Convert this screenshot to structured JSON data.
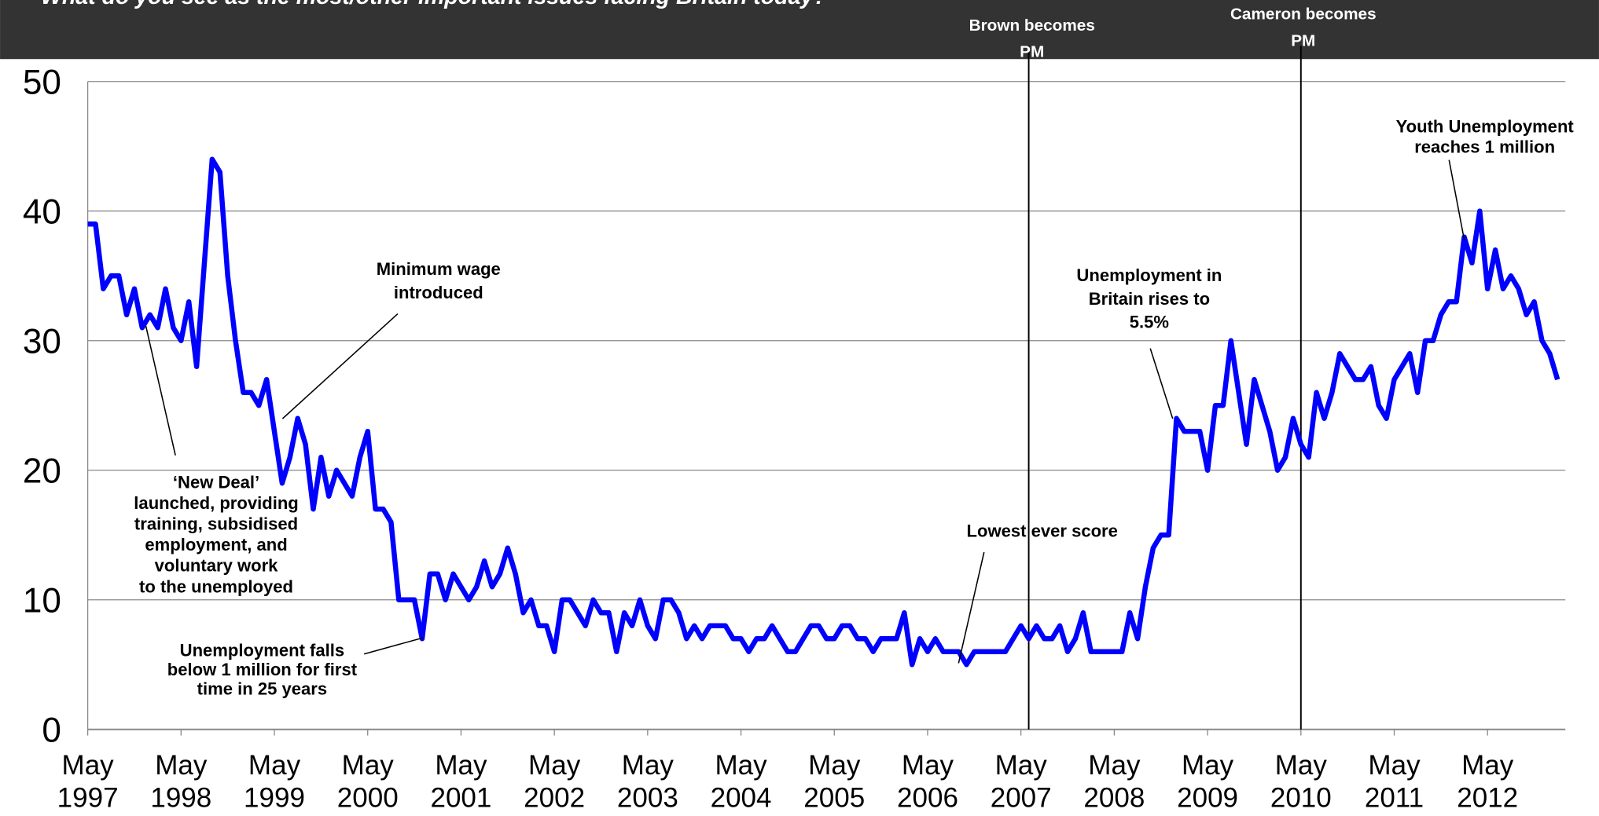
{
  "chart_data": {
    "type": "line",
    "title": "What do you see as the most/other important issues facing Britain today?",
    "x": [
      "1997-05",
      "1997-06",
      "1997-07",
      "1997-08",
      "1997-09",
      "1997-10",
      "1997-11",
      "1997-12",
      "1998-01",
      "1998-02",
      "1998-03",
      "1998-04",
      "1998-05",
      "1998-06",
      "1998-07",
      "1998-08",
      "1998-09",
      "1998-10",
      "1998-11",
      "1998-12",
      "1999-01",
      "1999-02",
      "1999-03",
      "1999-04",
      "1999-05",
      "1999-06",
      "1999-07",
      "1999-08",
      "1999-09",
      "1999-10",
      "1999-11",
      "1999-12",
      "2000-01",
      "2000-02",
      "2000-03",
      "2000-04",
      "2000-05",
      "2000-06",
      "2000-07",
      "2000-08",
      "2000-09",
      "2000-10",
      "2000-11",
      "2000-12",
      "2001-01",
      "2001-02",
      "2001-03",
      "2001-04",
      "2001-05",
      "2001-06",
      "2001-07",
      "2001-08",
      "2001-09",
      "2001-10",
      "2001-11",
      "2001-12",
      "2002-01",
      "2002-02",
      "2002-03",
      "2002-04",
      "2002-05",
      "2002-06",
      "2002-07",
      "2002-08",
      "2002-09",
      "2002-10",
      "2002-11",
      "2002-12",
      "2003-01",
      "2003-02",
      "2003-03",
      "2003-04",
      "2003-05",
      "2003-06",
      "2003-07",
      "2003-08",
      "2003-09",
      "2003-10",
      "2003-11",
      "2003-12",
      "2004-01",
      "2004-02",
      "2004-03",
      "2004-04",
      "2004-05",
      "2004-06",
      "2004-07",
      "2004-08",
      "2004-09",
      "2004-10",
      "2004-11",
      "2004-12",
      "2005-01",
      "2005-02",
      "2005-03",
      "2005-04",
      "2005-05",
      "2005-06",
      "2005-07",
      "2005-08",
      "2005-09",
      "2005-10",
      "2005-11",
      "2005-12",
      "2006-01",
      "2006-02",
      "2006-03",
      "2006-04",
      "2006-05",
      "2006-06",
      "2006-07",
      "2006-08",
      "2006-09",
      "2006-10",
      "2006-11",
      "2006-12",
      "2007-01",
      "2007-02",
      "2007-03",
      "2007-04",
      "2007-05",
      "2007-06",
      "2007-07",
      "2007-08",
      "2007-09",
      "2007-10",
      "2007-11",
      "2007-12",
      "2008-01",
      "2008-02",
      "2008-03",
      "2008-04",
      "2008-05",
      "2008-06",
      "2008-07",
      "2008-08",
      "2008-09",
      "2008-10",
      "2008-11",
      "2008-12",
      "2009-01",
      "2009-02",
      "2009-03",
      "2009-04",
      "2009-05",
      "2009-06",
      "2009-07",
      "2009-08",
      "2009-09",
      "2009-10",
      "2009-11",
      "2009-12",
      "2010-01",
      "2010-02",
      "2010-03",
      "2010-04",
      "2010-05",
      "2010-06",
      "2010-07",
      "2010-08",
      "2010-09",
      "2010-10",
      "2010-11",
      "2010-12",
      "2011-01",
      "2011-02",
      "2011-03",
      "2011-04",
      "2011-05",
      "2011-06",
      "2011-07",
      "2011-08",
      "2011-09",
      "2011-10",
      "2011-11",
      "2011-12",
      "2012-01",
      "2012-02",
      "2012-03",
      "2012-04",
      "2012-05",
      "2012-06",
      "2012-07",
      "2012-08",
      "2012-09",
      "2012-10",
      "2012-11",
      "2012-12",
      "2013-01",
      "2013-02"
    ],
    "series": [
      {
        "color": "#0000ff",
        "values": [
          39,
          39,
          34,
          35,
          35,
          32,
          34,
          31,
          32,
          31,
          34,
          31,
          30,
          33,
          28,
          36,
          44,
          43,
          35,
          30,
          26,
          26,
          25,
          27,
          23,
          19,
          21,
          24,
          22,
          17,
          21,
          18,
          20,
          19,
          18,
          21,
          23,
          17,
          17,
          16,
          10,
          10,
          10,
          7,
          12,
          12,
          10,
          12,
          11,
          10,
          11,
          13,
          11,
          12,
          14,
          12,
          9,
          10,
          8,
          8,
          6,
          10,
          10,
          9,
          8,
          10,
          9,
          9,
          6,
          9,
          8,
          10,
          8,
          7,
          10,
          10,
          9,
          7,
          8,
          7,
          8,
          8,
          8,
          7,
          7,
          6,
          7,
          7,
          8,
          7,
          6,
          6,
          7,
          8,
          8,
          7,
          7,
          8,
          8,
          7,
          7,
          6,
          7,
          7,
          7,
          9,
          5,
          7,
          6,
          7,
          6,
          6,
          6,
          5,
          6,
          6,
          6,
          6,
          6,
          7,
          8,
          7,
          8,
          7,
          7,
          8,
          6,
          7,
          9,
          6,
          6,
          6,
          6,
          6,
          9,
          7,
          11,
          14,
          15,
          15,
          24,
          23,
          23,
          23,
          20,
          25,
          25,
          30,
          26,
          22,
          27,
          25,
          23,
          20,
          21,
          24,
          22,
          21,
          26,
          24,
          26,
          29,
          28,
          27,
          27,
          28,
          25,
          24,
          27,
          28,
          29,
          26,
          30,
          30,
          32,
          33,
          33,
          38,
          36,
          40,
          34,
          37,
          34,
          35,
          34,
          32,
          33,
          30,
          29,
          27
        ]
      }
    ],
    "xlim": [
      "1997-05",
      "2013-03"
    ],
    "xticks": [
      {
        "value": "1997-05",
        "label": "May 1997"
      },
      {
        "value": "1998-05",
        "label": "May 1998"
      },
      {
        "value": "1999-05",
        "label": "May 1999"
      },
      {
        "value": "2000-05",
        "label": "May 2000"
      },
      {
        "value": "2001-05",
        "label": "May 2001"
      },
      {
        "value": "2002-05",
        "label": "May 2002"
      },
      {
        "value": "2003-05",
        "label": "May 2003"
      },
      {
        "value": "2004-05",
        "label": "May 2004"
      },
      {
        "value": "2005-05",
        "label": "May 2005"
      },
      {
        "value": "2006-05",
        "label": "May 2006"
      },
      {
        "value": "2007-05",
        "label": "May 2007"
      },
      {
        "value": "2008-05",
        "label": "May 2008"
      },
      {
        "value": "2009-05",
        "label": "May 2009"
      },
      {
        "value": "2010-05",
        "label": "May 2010"
      },
      {
        "value": "2011-05",
        "label": "May 2011"
      },
      {
        "value": "2012-05",
        "label": "May 2012"
      }
    ],
    "ylim": [
      0,
      50
    ],
    "yticks": [
      0,
      10,
      20,
      30,
      40,
      50
    ],
    "grid": true,
    "events": [
      {
        "x": "2007-06",
        "lines": [
          "Brown becomes",
          "PM"
        ]
      },
      {
        "x": "2010-05",
        "lines": [
          "Cameron becomes",
          "PM"
        ]
      }
    ],
    "annotations": [
      {
        "lines": [
          "Minimum wage",
          "introduced"
        ]
      },
      {
        "lines": [
          "‘New Deal’",
          "launched, providing",
          "training, subsidised",
          "employment, and",
          "voluntary work",
          "to the unemployed"
        ]
      },
      {
        "lines": [
          "Unemployment falls",
          "below 1 million for first",
          "time in 25 years"
        ]
      },
      {
        "lines": [
          "Lowest ever score"
        ]
      },
      {
        "lines": [
          "Unemployment in",
          "Britain rises to",
          "5.5%"
        ]
      },
      {
        "lines": [
          "Youth Unemployment",
          "reaches 1 million"
        ]
      }
    ]
  }
}
